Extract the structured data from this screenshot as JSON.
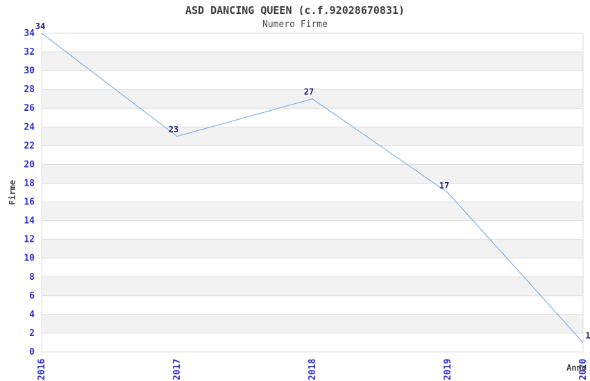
{
  "chart": {
    "title": "ASD DANCING QUEEN (c.f.92028670831)",
    "subtitle": "Numero Firme"
  },
  "chart_data": {
    "type": "line",
    "title": "ASD DANCING QUEEN (c.f.92028670831)",
    "subtitle": "Numero Firme",
    "xlabel": "Anno",
    "ylabel": "Firme",
    "x": [
      "2016",
      "2017",
      "2018",
      "2019",
      "2020"
    ],
    "values": [
      34,
      23,
      27,
      17,
      1
    ],
    "point_labels": [
      "34",
      "23",
      "27",
      "17",
      "1"
    ],
    "ylim": [
      0,
      34
    ],
    "ytick_step": 2,
    "legend": "none",
    "grid": "horizontal gridlines with alternating gray bands, no vertical gridlines",
    "colors": {
      "line": "#7fb1e3",
      "tick_label": "#2d2dcb",
      "point_label": "#1e1e73",
      "band": "#f2f2f2",
      "gridline": "#dcdcdc",
      "axis_text": "#3c3c3c"
    }
  }
}
